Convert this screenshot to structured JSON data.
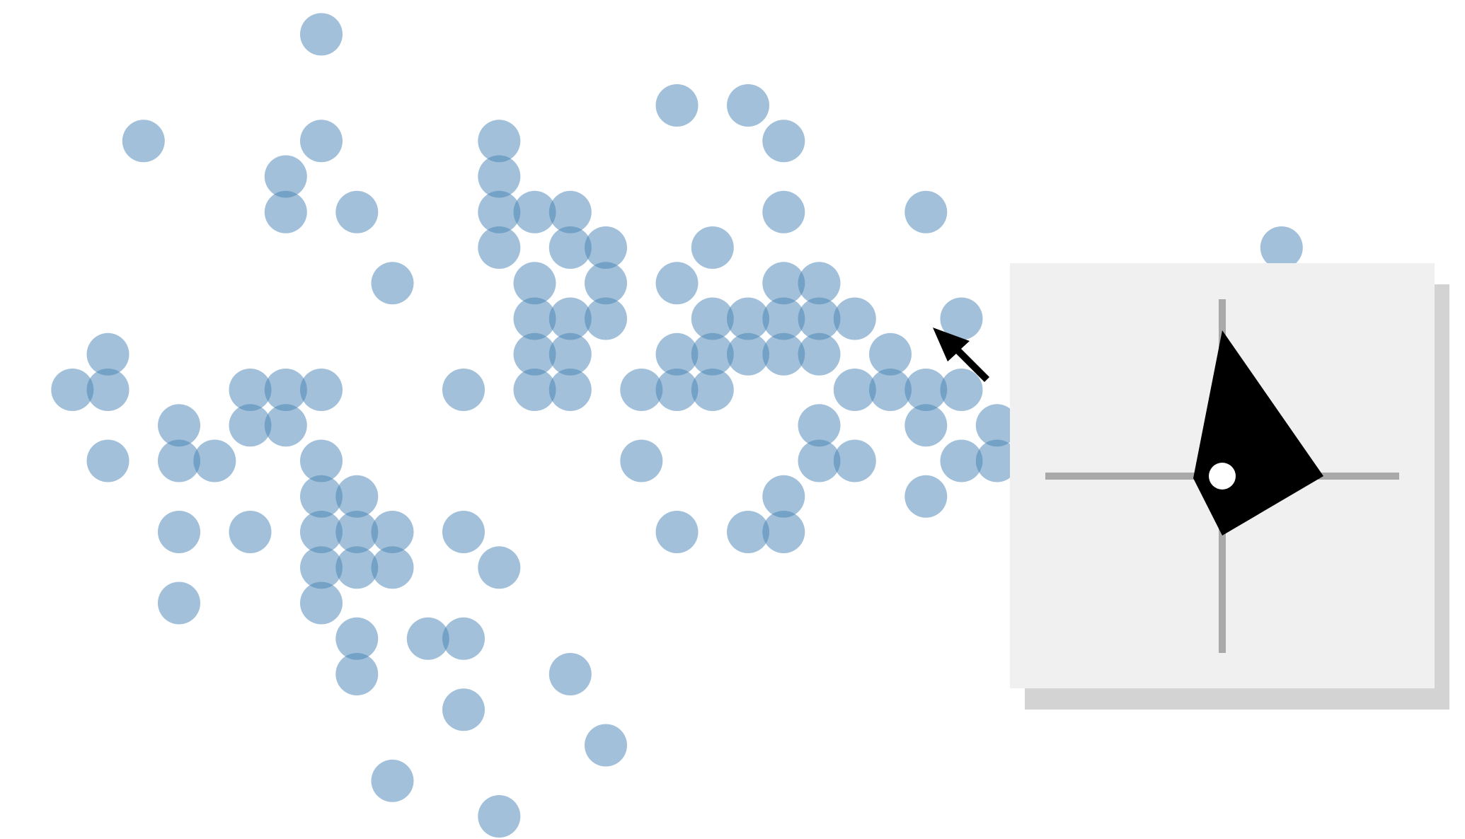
{
  "colors": {
    "point_fill": "#4682b4",
    "point_opacity": 0.5,
    "panel_background": "#f0f0f0",
    "panel_shadow": "#d3d3d3",
    "panel_axis": "#a9a9a9",
    "glyph_fill": "#000000",
    "glyph_center_fill": "#ffffff",
    "cursor_fill": "#000000"
  },
  "cursor": {
    "icon": "arrow-cursor-icon"
  },
  "chart_data": {
    "type": "scatter",
    "title": "",
    "xlabel": "",
    "ylabel": "",
    "grid": false,
    "legend": "none",
    "axes_shown": false,
    "xlim": [
      0,
      41
    ],
    "ylim": [
      0,
      23
    ],
    "points": [
      [
        8,
        22
      ],
      [
        3,
        19
      ],
      [
        8,
        19
      ],
      [
        13,
        19
      ],
      [
        18,
        20
      ],
      [
        20,
        20
      ],
      [
        21,
        19
      ],
      [
        7,
        18
      ],
      [
        13,
        18
      ],
      [
        7,
        17
      ],
      [
        9,
        17
      ],
      [
        13,
        17
      ],
      [
        14,
        17
      ],
      [
        15,
        17
      ],
      [
        21,
        17
      ],
      [
        25,
        17
      ],
      [
        13,
        16
      ],
      [
        15,
        16
      ],
      [
        16,
        16
      ],
      [
        19,
        16
      ],
      [
        35,
        16
      ],
      [
        10,
        15
      ],
      [
        14,
        15
      ],
      [
        16,
        15
      ],
      [
        18,
        15
      ],
      [
        21,
        15
      ],
      [
        22,
        15
      ],
      [
        14,
        14
      ],
      [
        15,
        14
      ],
      [
        16,
        14
      ],
      [
        19,
        14
      ],
      [
        20,
        14
      ],
      [
        21,
        14
      ],
      [
        22,
        14
      ],
      [
        23,
        14
      ],
      [
        26,
        14
      ],
      [
        2,
        13
      ],
      [
        14,
        13
      ],
      [
        15,
        13
      ],
      [
        18,
        13
      ],
      [
        19,
        13
      ],
      [
        20,
        13
      ],
      [
        21,
        13
      ],
      [
        22,
        13
      ],
      [
        24,
        13
      ],
      [
        1,
        12
      ],
      [
        2,
        12
      ],
      [
        6,
        12
      ],
      [
        7,
        12
      ],
      [
        8,
        12
      ],
      [
        12,
        12
      ],
      [
        14,
        12
      ],
      [
        15,
        12
      ],
      [
        17,
        12
      ],
      [
        18,
        12
      ],
      [
        19,
        12
      ],
      [
        23,
        12
      ],
      [
        24,
        12
      ],
      [
        25,
        12
      ],
      [
        26,
        12
      ],
      [
        4,
        11
      ],
      [
        6,
        11
      ],
      [
        7,
        11
      ],
      [
        22,
        11
      ],
      [
        25,
        11
      ],
      [
        27,
        11
      ],
      [
        2,
        10
      ],
      [
        4,
        10
      ],
      [
        5,
        10
      ],
      [
        8,
        10
      ],
      [
        17,
        10
      ],
      [
        22,
        10
      ],
      [
        23,
        10
      ],
      [
        26,
        10
      ],
      [
        27,
        10
      ],
      [
        28,
        10
      ],
      [
        8,
        9
      ],
      [
        9,
        9
      ],
      [
        21,
        9
      ],
      [
        25,
        9
      ],
      [
        4,
        8
      ],
      [
        6,
        8
      ],
      [
        8,
        8
      ],
      [
        9,
        8
      ],
      [
        10,
        8
      ],
      [
        12,
        8
      ],
      [
        18,
        8
      ],
      [
        20,
        8
      ],
      [
        21,
        8
      ],
      [
        8,
        7
      ],
      [
        9,
        7
      ],
      [
        10,
        7
      ],
      [
        13,
        7
      ],
      [
        4,
        6
      ],
      [
        8,
        6
      ],
      [
        9,
        5
      ],
      [
        11,
        5
      ],
      [
        12,
        5
      ],
      [
        9,
        4
      ],
      [
        15,
        4
      ],
      [
        12,
        3
      ],
      [
        16,
        2
      ],
      [
        10,
        1
      ],
      [
        13,
        0
      ]
    ]
  }
}
